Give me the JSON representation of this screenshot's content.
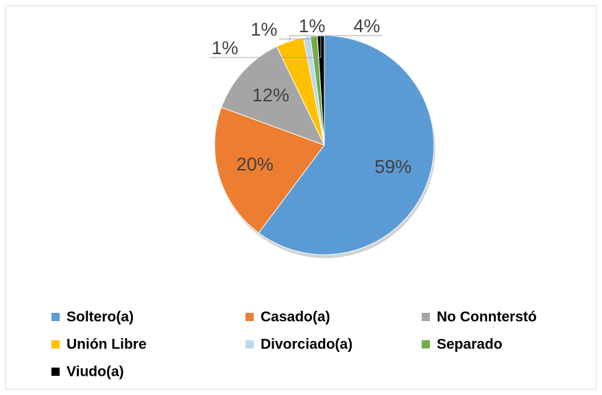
{
  "chart_data": {
    "type": "pie",
    "categories": [
      "Soltero(a)",
      "Casado(a)",
      "No Connterstó",
      "Unión Libre",
      "Divorciado(a)",
      "Separado",
      "Viudo(a)"
    ],
    "values": [
      59,
      20,
      12,
      4,
      1,
      1,
      1
    ],
    "value_labels": [
      "59%",
      "20%",
      "12%",
      "4%",
      "1%",
      "1%",
      "1%"
    ],
    "colors": [
      "#5b9bd5",
      "#ed7d31",
      "#a5a5a5",
      "#ffc000",
      "#bdd7ee",
      "#70ad47",
      "#000000"
    ],
    "legend": "bottom"
  }
}
